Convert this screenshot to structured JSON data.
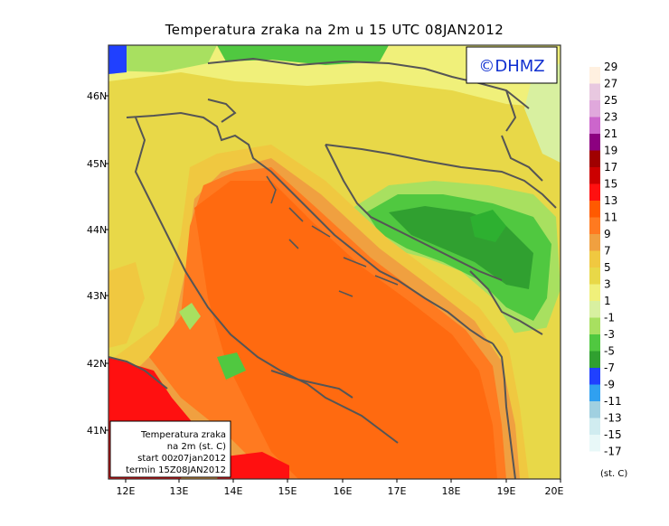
{
  "title": "Temperatura zraka na 2m u 15 UTC 08JAN2012",
  "logo_text": "©DHMZ",
  "info_box": {
    "line1": "Temperatura zraka",
    "line2": "na 2m (st. C)",
    "line3": "start 00z07jan2012",
    "line4": "termin 15Z08JAN2012"
  },
  "lat_labels": [
    "46N",
    "45N",
    "44N",
    "43N",
    "42N",
    "41N"
  ],
  "lon_labels": [
    "12E",
    "13E",
    "14E",
    "15E",
    "16E",
    "17E",
    "18E",
    "19E",
    "20E"
  ],
  "colorbar": {
    "unit": "(st. C)",
    "labels": [
      "29",
      "27",
      "25",
      "23",
      "21",
      "19",
      "17",
      "15",
      "13",
      "11",
      "9",
      "7",
      "5",
      "3",
      "1",
      "-1",
      "-3",
      "-5",
      "-7",
      "-9",
      "-11",
      "-13",
      "-15",
      "-17"
    ],
    "colors": [
      "#fff0e0",
      "#e8c8e0",
      "#e0a8dc",
      "#cc66cc",
      "#8c0080",
      "#a00000",
      "#cc0000",
      "#ff1010",
      "#ff5a00",
      "#ff7a20",
      "#f0a040",
      "#f0c840",
      "#e8d848",
      "#f0f07a",
      "#d8f0a0",
      "#a8e060",
      "#50c840",
      "#30a030",
      "#2040ff",
      "#30a0f0",
      "#a0d0e0",
      "#d0ecf0",
      "#e8f8f8"
    ]
  }
}
